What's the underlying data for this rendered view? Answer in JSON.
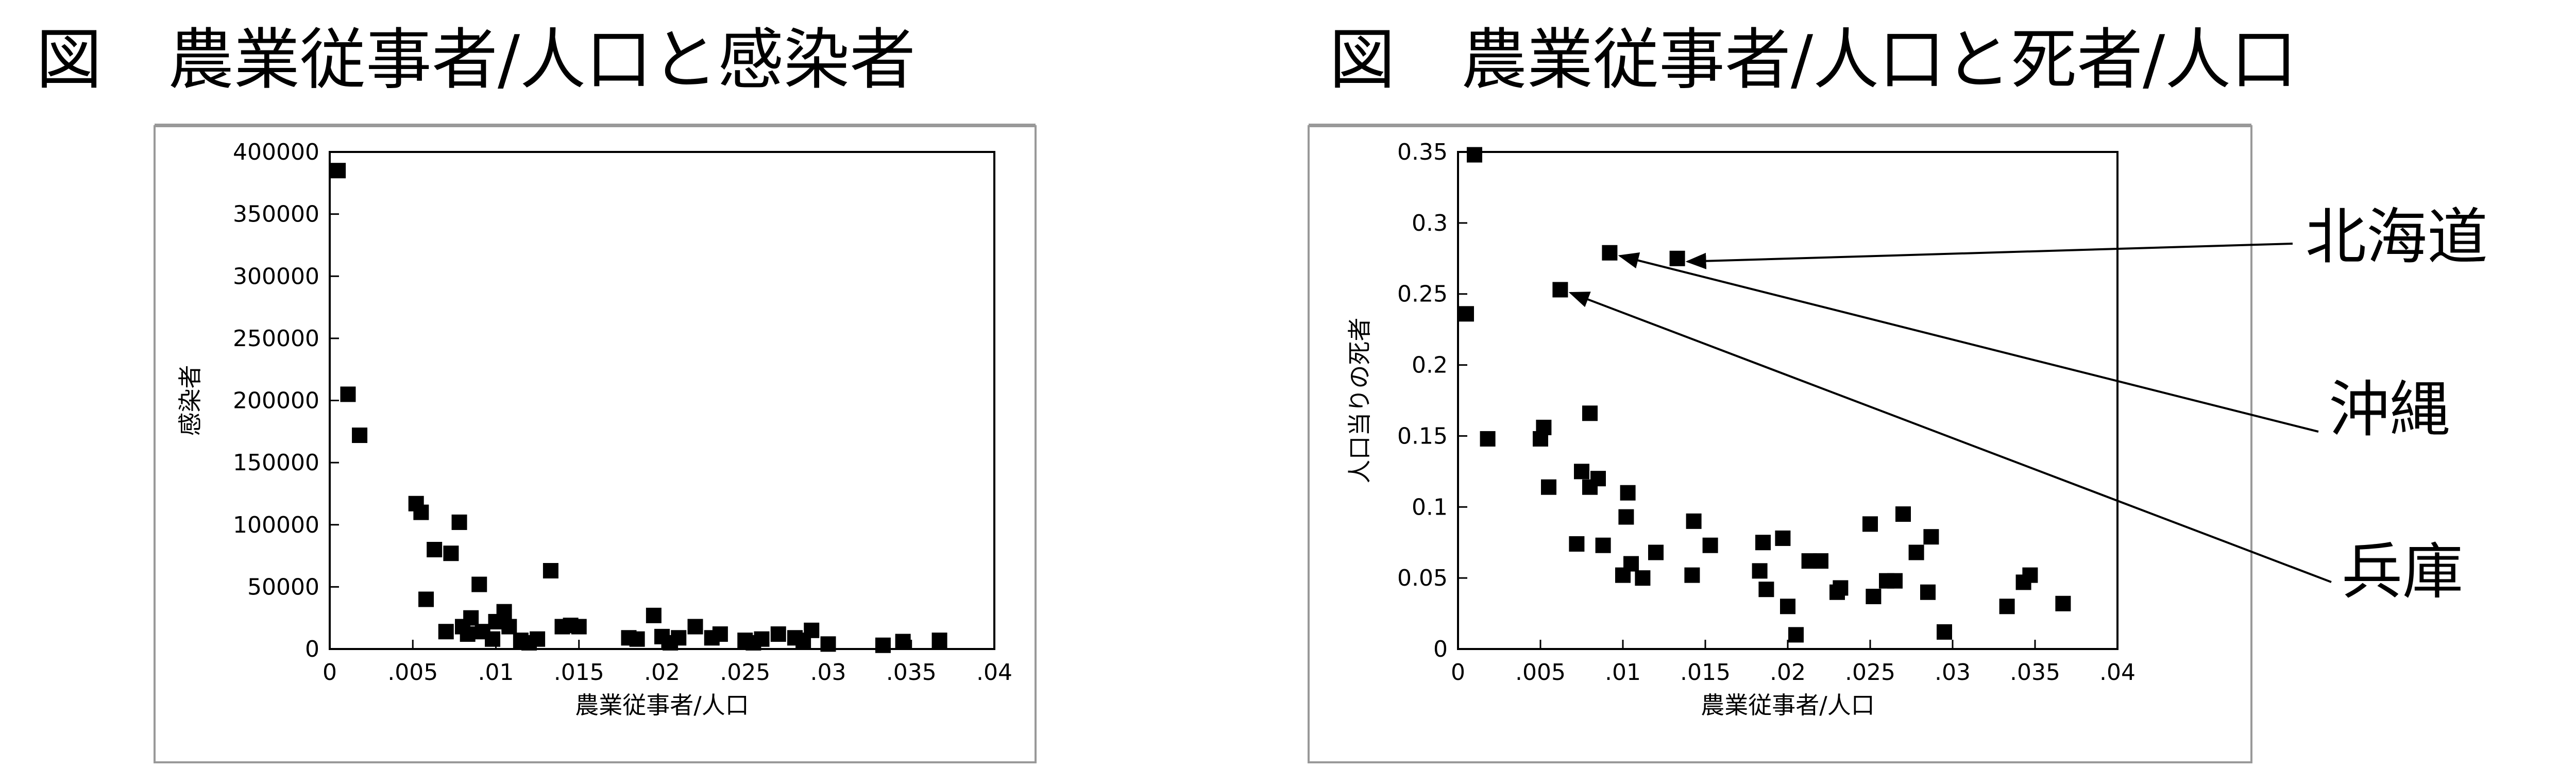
{
  "titles": {
    "left": "図　農業従事者/人口と感染者",
    "right": "図　農業従事者/人口と死者/人口"
  },
  "chart_data": [
    {
      "type": "scatter",
      "title": "図　農業従事者/人口と感染者",
      "xlabel": "農業従事者/人口",
      "ylabel": "感染者",
      "xlim": [
        0,
        0.04
      ],
      "ylim": [
        0,
        400000
      ],
      "x_ticks": [
        "0",
        ".005",
        ".01",
        ".015",
        ".02",
        ".025",
        ".03",
        ".035",
        ".04"
      ],
      "y_ticks": [
        "0",
        "50000",
        "100000",
        "150000",
        "200000",
        "250000",
        "300000",
        "350000",
        "400000"
      ],
      "grid": false,
      "points": [
        {
          "x": 0.0005,
          "y": 385000
        },
        {
          "x": 0.0011,
          "y": 205000
        },
        {
          "x": 0.0018,
          "y": 172000
        },
        {
          "x": 0.0052,
          "y": 117000
        },
        {
          "x": 0.0055,
          "y": 110000
        },
        {
          "x": 0.0058,
          "y": 40000
        },
        {
          "x": 0.0063,
          "y": 80000
        },
        {
          "x": 0.007,
          "y": 14000
        },
        {
          "x": 0.0073,
          "y": 77000
        },
        {
          "x": 0.0078,
          "y": 102000
        },
        {
          "x": 0.008,
          "y": 18000
        },
        {
          "x": 0.0083,
          "y": 12000
        },
        {
          "x": 0.0085,
          "y": 25000
        },
        {
          "x": 0.009,
          "y": 52000
        },
        {
          "x": 0.0092,
          "y": 14000
        },
        {
          "x": 0.0098,
          "y": 8000
        },
        {
          "x": 0.01,
          "y": 22000
        },
        {
          "x": 0.0105,
          "y": 30000
        },
        {
          "x": 0.0108,
          "y": 18000
        },
        {
          "x": 0.0115,
          "y": 7000
        },
        {
          "x": 0.012,
          "y": 5000
        },
        {
          "x": 0.0125,
          "y": 8000
        },
        {
          "x": 0.0133,
          "y": 63000
        },
        {
          "x": 0.014,
          "y": 18000
        },
        {
          "x": 0.0145,
          "y": 19000
        },
        {
          "x": 0.015,
          "y": 18000
        },
        {
          "x": 0.018,
          "y": 9000
        },
        {
          "x": 0.0185,
          "y": 8000
        },
        {
          "x": 0.0195,
          "y": 27000
        },
        {
          "x": 0.02,
          "y": 10000
        },
        {
          "x": 0.0205,
          "y": 5000
        },
        {
          "x": 0.021,
          "y": 9000
        },
        {
          "x": 0.022,
          "y": 18000
        },
        {
          "x": 0.023,
          "y": 9000
        },
        {
          "x": 0.0235,
          "y": 12000
        },
        {
          "x": 0.025,
          "y": 7000
        },
        {
          "x": 0.0255,
          "y": 5000
        },
        {
          "x": 0.026,
          "y": 8000
        },
        {
          "x": 0.027,
          "y": 12000
        },
        {
          "x": 0.028,
          "y": 9000
        },
        {
          "x": 0.0285,
          "y": 7000
        },
        {
          "x": 0.029,
          "y": 15000
        },
        {
          "x": 0.03,
          "y": 4000
        },
        {
          "x": 0.0333,
          "y": 3000
        },
        {
          "x": 0.0345,
          "y": 6000
        },
        {
          "x": 0.0367,
          "y": 7000
        }
      ]
    },
    {
      "type": "scatter",
      "title": "図　農業従事者/人口と死者/人口",
      "xlabel": "農業従事者/人口",
      "ylabel": "人口当りの死者",
      "xlim": [
        0,
        0.04
      ],
      "ylim": [
        0,
        0.35
      ],
      "x_ticks": [
        "0",
        ".005",
        ".01",
        ".015",
        ".02",
        ".025",
        ".03",
        ".035",
        ".04"
      ],
      "y_ticks": [
        "0",
        "0.05",
        "0.1",
        "0.15",
        "0.2",
        "0.25",
        "0.3",
        "0.35"
      ],
      "grid": false,
      "points": [
        {
          "x": 0.001,
          "y": 0.348
        },
        {
          "x": 0.0005,
          "y": 0.236
        },
        {
          "x": 0.0018,
          "y": 0.148
        },
        {
          "x": 0.005,
          "y": 0.148
        },
        {
          "x": 0.0052,
          "y": 0.156
        },
        {
          "x": 0.0055,
          "y": 0.114
        },
        {
          "x": 0.0062,
          "y": 0.253
        },
        {
          "x": 0.0072,
          "y": 0.074
        },
        {
          "x": 0.0075,
          "y": 0.125
        },
        {
          "x": 0.008,
          "y": 0.114
        },
        {
          "x": 0.008,
          "y": 0.166
        },
        {
          "x": 0.0085,
          "y": 0.12
        },
        {
          "x": 0.0088,
          "y": 0.073
        },
        {
          "x": 0.0092,
          "y": 0.279
        },
        {
          "x": 0.01,
          "y": 0.052
        },
        {
          "x": 0.0102,
          "y": 0.093
        },
        {
          "x": 0.0103,
          "y": 0.11
        },
        {
          "x": 0.0105,
          "y": 0.06
        },
        {
          "x": 0.0112,
          "y": 0.05
        },
        {
          "x": 0.012,
          "y": 0.068
        },
        {
          "x": 0.0133,
          "y": 0.275
        },
        {
          "x": 0.0142,
          "y": 0.052
        },
        {
          "x": 0.0143,
          "y": 0.09
        },
        {
          "x": 0.0153,
          "y": 0.073
        },
        {
          "x": 0.0183,
          "y": 0.055
        },
        {
          "x": 0.0185,
          "y": 0.075
        },
        {
          "x": 0.0187,
          "y": 0.042
        },
        {
          "x": 0.0197,
          "y": 0.078
        },
        {
          "x": 0.02,
          "y": 0.03
        },
        {
          "x": 0.0205,
          "y": 0.01
        },
        {
          "x": 0.0213,
          "y": 0.062
        },
        {
          "x": 0.022,
          "y": 0.062
        },
        {
          "x": 0.023,
          "y": 0.04
        },
        {
          "x": 0.0232,
          "y": 0.043
        },
        {
          "x": 0.025,
          "y": 0.088
        },
        {
          "x": 0.0252,
          "y": 0.037
        },
        {
          "x": 0.026,
          "y": 0.048
        },
        {
          "x": 0.0265,
          "y": 0.048
        },
        {
          "x": 0.027,
          "y": 0.095
        },
        {
          "x": 0.0278,
          "y": 0.068
        },
        {
          "x": 0.0285,
          "y": 0.04
        },
        {
          "x": 0.0287,
          "y": 0.079
        },
        {
          "x": 0.0295,
          "y": 0.012
        },
        {
          "x": 0.0333,
          "y": 0.03
        },
        {
          "x": 0.0343,
          "y": 0.047
        },
        {
          "x": 0.0347,
          "y": 0.052
        },
        {
          "x": 0.0367,
          "y": 0.032
        }
      ],
      "annotations": [
        {
          "text": "北海道",
          "x": 0.0133,
          "y": 0.275
        },
        {
          "text": "沖縄",
          "x": 0.0092,
          "y": 0.279
        },
        {
          "text": "兵庫",
          "x": 0.0062,
          "y": 0.253
        }
      ]
    }
  ]
}
